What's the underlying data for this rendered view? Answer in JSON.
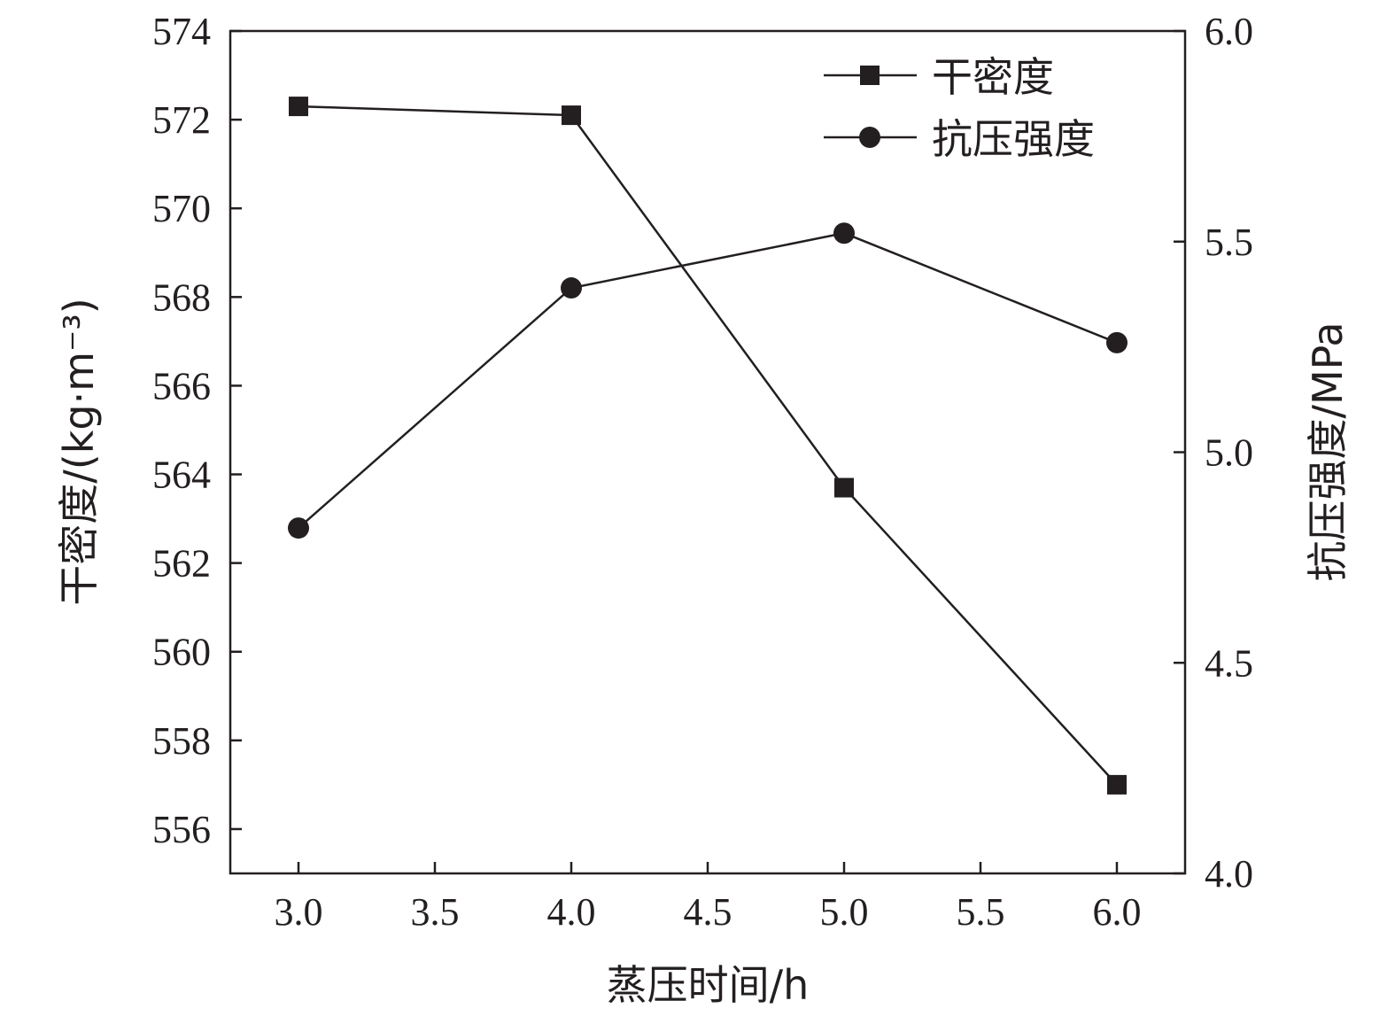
{
  "chart_data": {
    "type": "line",
    "x": [
      3.0,
      4.0,
      5.0,
      6.0
    ],
    "series": [
      {
        "name": "干密度",
        "axis": "left",
        "marker": "square",
        "values": [
          572.3,
          572.1,
          563.7,
          557.0
        ]
      },
      {
        "name": "抗压强度",
        "axis": "right",
        "marker": "circle",
        "values": [
          4.82,
          5.39,
          5.52,
          5.26
        ]
      }
    ],
    "xlabel": "蒸压时间/h",
    "ylabel_left": "干密度/(kg·m⁻³)",
    "ylabel_right": "抗压强度/MPa",
    "xlim": [
      2.75,
      6.25
    ],
    "ylim_left": [
      555,
      574
    ],
    "ylim_right": [
      4.0,
      6.0
    ],
    "x_ticks": [
      "3.0",
      "3.5",
      "4.0",
      "4.5",
      "5.0",
      "5.5",
      "6.0"
    ],
    "y_left_ticks": [
      "556",
      "558",
      "560",
      "562",
      "564",
      "566",
      "568",
      "570",
      "572",
      "574"
    ],
    "y_right_ticks": [
      "4.0",
      "4.5",
      "5.0",
      "5.5",
      "6.0"
    ],
    "legend_position": "top-right",
    "grid": false,
    "line_color": "#231f20"
  }
}
